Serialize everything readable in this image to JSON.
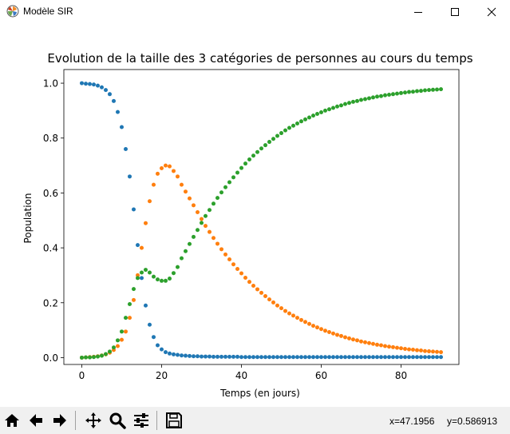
{
  "window": {
    "title": "Modèle SIR",
    "controls": [
      "minimize-icon",
      "maximize-icon",
      "close-icon"
    ]
  },
  "toolbar": {
    "buttons": [
      "home-icon",
      "back-arrow-icon",
      "forward-arrow-icon",
      "pan-icon",
      "zoom-icon",
      "configure-subplots-icon",
      "save-icon"
    ],
    "x_readout": "x=47.1956",
    "y_readout": "y=0.586913"
  },
  "colors": {
    "S": "#1f77b4",
    "I": "#ff7f0e",
    "R": "#2ca02c"
  },
  "chart_data": {
    "type": "scatter",
    "title": "Evolution de la taille des 3 catégories de personnes au cours du temps",
    "xlabel": "Temps (en jours)",
    "ylabel": "Population",
    "xlim": [
      -4.5,
      94.5
    ],
    "ylim": [
      -0.0249,
      1.0497
    ],
    "xticks": [
      0,
      20,
      40,
      60,
      80
    ],
    "xtick_labels": [
      "0",
      "20",
      "40",
      "60",
      "80"
    ],
    "yticks": [
      0.0,
      0.2,
      0.4,
      0.6,
      0.8,
      1.0
    ],
    "ytick_labels": [
      "0.0",
      "0.2",
      "0.4",
      "0.6",
      "0.8",
      "1.0"
    ],
    "grid": false,
    "legend": false,
    "x": [
      0,
      1,
      2,
      3,
      4,
      5,
      6,
      7,
      8,
      9,
      10,
      11,
      12,
      13,
      14,
      15,
      16,
      17,
      18,
      19,
      20,
      21,
      22,
      23,
      24,
      25,
      26,
      27,
      28,
      29,
      30,
      31,
      32,
      33,
      34,
      35,
      36,
      37,
      38,
      39,
      40,
      41,
      42,
      43,
      44,
      45,
      46,
      47,
      48,
      49,
      50,
      51,
      52,
      53,
      54,
      55,
      56,
      57,
      58,
      59,
      60,
      61,
      62,
      63,
      64,
      65,
      66,
      67,
      68,
      69,
      70,
      71,
      72,
      73,
      74,
      75,
      76,
      77,
      78,
      79,
      80,
      81,
      82,
      83,
      84,
      85,
      86,
      87,
      88,
      89,
      90
    ],
    "series": [
      {
        "values": [
          1.0,
          0.998,
          0.997,
          0.995,
          0.991,
          0.985,
          0.975,
          0.96,
          0.935,
          0.895,
          0.84,
          0.76,
          0.66,
          0.54,
          0.41,
          0.29,
          0.19,
          0.12,
          0.075,
          0.045,
          0.03,
          0.02,
          0.015,
          0.012,
          0.01,
          0.008,
          0.007,
          0.006,
          0.005,
          0.005,
          0.004,
          0.004,
          0.004,
          0.003,
          0.003,
          0.003,
          0.003,
          0.003,
          0.003,
          0.003,
          0.002,
          0.002,
          0.002,
          0.002,
          0.002,
          0.002,
          0.002,
          0.002,
          0.002,
          0.002,
          0.002,
          0.002,
          0.002,
          0.002,
          0.002,
          0.002,
          0.002,
          0.002,
          0.002,
          0.002,
          0.002,
          0.002,
          0.002,
          0.002,
          0.002,
          0.002,
          0.002,
          0.002,
          0.002,
          0.002,
          0.002,
          0.002,
          0.002,
          0.002,
          0.002,
          0.002,
          0.002,
          0.002,
          0.002,
          0.002,
          0.002,
          0.002,
          0.002,
          0.002,
          0.002,
          0.002,
          0.002,
          0.002,
          0.002,
          0.002,
          0.002
        ]
      },
      {
        "values": [
          0.0,
          0.001,
          0.002,
          0.003,
          0.005,
          0.008,
          0.012,
          0.018,
          0.028,
          0.042,
          0.065,
          0.095,
          0.145,
          0.21,
          0.3,
          0.4,
          0.49,
          0.57,
          0.63,
          0.67,
          0.69,
          0.7,
          0.697,
          0.68,
          0.66,
          0.63,
          0.605,
          0.58,
          0.555,
          0.53,
          0.505,
          0.48,
          0.458,
          0.436,
          0.415,
          0.395,
          0.376,
          0.358,
          0.34,
          0.323,
          0.307,
          0.291,
          0.276,
          0.262,
          0.249,
          0.236,
          0.224,
          0.212,
          0.201,
          0.19,
          0.18,
          0.17,
          0.161,
          0.153,
          0.145,
          0.137,
          0.13,
          0.123,
          0.116,
          0.11,
          0.104,
          0.098,
          0.093,
          0.088,
          0.083,
          0.079,
          0.074,
          0.07,
          0.066,
          0.063,
          0.059,
          0.056,
          0.053,
          0.05,
          0.047,
          0.045,
          0.042,
          0.04,
          0.038,
          0.036,
          0.034,
          0.032,
          0.03,
          0.029,
          0.027,
          0.026,
          0.024,
          0.023,
          0.022,
          0.021,
          0.02
        ]
      },
      {
        "values": [
          0.0,
          0.001,
          0.001,
          0.002,
          0.004,
          0.007,
          0.013,
          0.022,
          0.037,
          0.063,
          0.095,
          0.145,
          0.195,
          0.25,
          0.29,
          0.31,
          0.32,
          0.31,
          0.295,
          0.285,
          0.28,
          0.28,
          0.288,
          0.308,
          0.33,
          0.362,
          0.388,
          0.414,
          0.44,
          0.465,
          0.491,
          0.516,
          0.538,
          0.561,
          0.582,
          0.602,
          0.621,
          0.639,
          0.657,
          0.674,
          0.691,
          0.707,
          0.722,
          0.736,
          0.749,
          0.762,
          0.774,
          0.786,
          0.797,
          0.808,
          0.818,
          0.828,
          0.837,
          0.845,
          0.853,
          0.861,
          0.868,
          0.875,
          0.882,
          0.888,
          0.894,
          0.9,
          0.905,
          0.91,
          0.915,
          0.919,
          0.924,
          0.928,
          0.932,
          0.935,
          0.939,
          0.942,
          0.945,
          0.948,
          0.951,
          0.953,
          0.956,
          0.958,
          0.96,
          0.962,
          0.964,
          0.966,
          0.968,
          0.969,
          0.971,
          0.972,
          0.974,
          0.975,
          0.976,
          0.977,
          0.978
        ]
      }
    ]
  }
}
